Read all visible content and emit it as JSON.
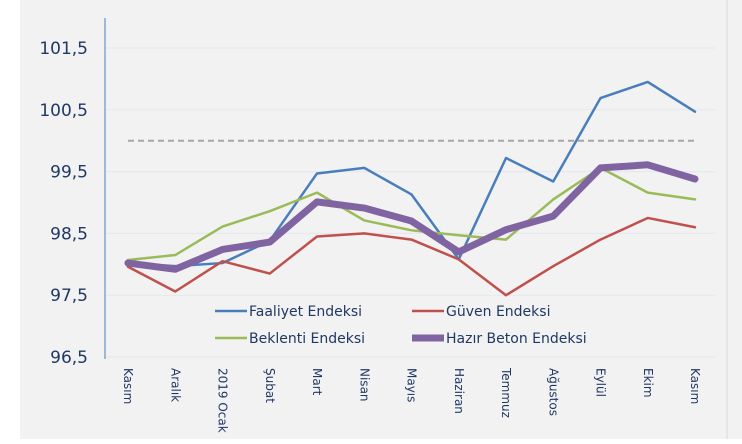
{
  "chart_data": {
    "type": "line",
    "title": "",
    "xlabel": "",
    "ylabel": "",
    "categories": [
      "Kasım",
      "Aralık",
      "2019 Ocak",
      "Şubat",
      "Mart",
      "Nisan",
      "Mayıs",
      "Haziran",
      "Temmuz",
      "Ağustos",
      "Eylül",
      "Ekim",
      "Kasım"
    ],
    "ylim": [
      96.5,
      101.5
    ],
    "yticks": [
      "96,5",
      "97,5",
      "98,5",
      "99,5",
      "100,5",
      "101,5"
    ],
    "ytick_values": [
      96.5,
      97.5,
      98.5,
      99.5,
      100.5,
      101.5
    ],
    "grid": true,
    "reference_line": {
      "value": 100,
      "style": "dashed",
      "color": "#a6a6a6"
    },
    "legend_placement": "bottom-center inside plot",
    "series": [
      {
        "name": "Faaliyet Endeksi",
        "color": "#4a7ebb",
        "values": [
          98.02,
          97.97,
          98.02,
          98.38,
          99.47,
          99.56,
          99.13,
          98.08,
          99.72,
          99.34,
          100.69,
          100.95,
          100.47
        ]
      },
      {
        "name": "Güven Endeksi",
        "color": "#c0504d",
        "values": [
          97.96,
          97.56,
          98.05,
          97.85,
          98.45,
          98.5,
          98.4,
          98.08,
          97.5,
          97.97,
          98.4,
          98.75,
          98.6
        ]
      },
      {
        "name": "Beklenti Endeksi",
        "color": "#9bbb59",
        "values": [
          98.07,
          98.15,
          98.61,
          98.86,
          99.16,
          98.71,
          98.55,
          98.47,
          98.4,
          99.05,
          99.56,
          99.16,
          99.05
        ]
      },
      {
        "name": "Hazır Beton Endeksi",
        "color": "#8064a2",
        "values": [
          98.02,
          97.92,
          98.24,
          98.36,
          99.01,
          98.91,
          98.7,
          98.2,
          98.56,
          98.78,
          99.56,
          99.61,
          99.38
        ]
      }
    ]
  }
}
